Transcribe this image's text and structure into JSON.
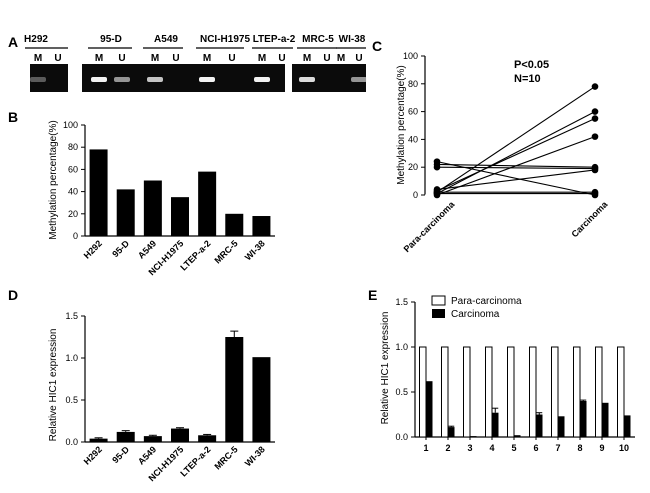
{
  "panel_labels": {
    "A": "A",
    "B": "B",
    "C": "C",
    "D": "D",
    "E": "E"
  },
  "colors": {
    "bar": "#000000",
    "gel_bg": "#0b0b0b",
    "band": "#f2f2f2",
    "open_bar": "#ffffff"
  },
  "gel": {
    "groups": [
      {
        "name": "H292",
        "lanes": [
          "M",
          "U"
        ],
        "bands": [
          0.35,
          0
        ]
      },
      {
        "name": "95-D",
        "lanes": [
          "M",
          "U"
        ],
        "bands": [
          1.0,
          0.6
        ]
      },
      {
        "name": "A549",
        "lanes": [
          "M",
          "U"
        ],
        "bands": [
          0.8,
          0
        ]
      },
      {
        "name": "NCI-H1975",
        "lanes": [
          "M",
          "U"
        ],
        "bands": [
          1.0,
          0
        ]
      },
      {
        "name": "LTEP-a-2",
        "lanes": [
          "M",
          "U"
        ],
        "bands": [
          1.0,
          0
        ]
      },
      {
        "name": "MRC-5",
        "lanes": [
          "M",
          "U"
        ],
        "bands": [
          0.9,
          0
        ]
      },
      {
        "name": "WI-38",
        "lanes": [
          "M",
          "U"
        ],
        "bands": [
          0,
          0.6
        ]
      }
    ]
  },
  "chart_data": [
    {
      "id": "B",
      "type": "bar",
      "categories": [
        "H292",
        "95-D",
        "A549",
        "NCI-H1975",
        "LTEP-a-2",
        "MRC-5",
        "WI-38"
      ],
      "values": [
        78,
        42,
        50,
        35,
        58,
        20,
        18
      ],
      "ylabel": "Methylation percentage(%)",
      "ylim": [
        0,
        100
      ],
      "yticks": [
        "0",
        "20",
        "40",
        "60",
        "80",
        "100"
      ]
    },
    {
      "id": "C",
      "type": "scatter",
      "categories": [
        "Para-carcinoma",
        "Carcinoma"
      ],
      "pairs": [
        [
          2,
          78
        ],
        [
          1,
          60
        ],
        [
          3,
          55
        ],
        [
          0,
          42
        ],
        [
          22,
          20
        ],
        [
          20,
          19
        ],
        [
          4,
          18
        ],
        [
          2,
          2
        ],
        [
          1,
          1
        ],
        [
          24,
          0
        ]
      ],
      "ylabel": "Methylation percentage(%)",
      "ylim": [
        0,
        100
      ],
      "yticks": [
        "0",
        "20",
        "40",
        "60",
        "80",
        "100"
      ],
      "annotations": [
        "P<0.05",
        "N=10"
      ]
    },
    {
      "id": "D",
      "type": "bar",
      "categories": [
        "H292",
        "95-D",
        "A549",
        "NCI-H1975",
        "LTEP-a-2",
        "MRC-5",
        "WI-38"
      ],
      "values": [
        0.04,
        0.12,
        0.07,
        0.16,
        0.08,
        1.25,
        1.01
      ],
      "errors": [
        0.01,
        0.015,
        0.01,
        0.01,
        0.01,
        0.07,
        0
      ],
      "ylabel": "Relative HIC1 expression",
      "ylim": [
        0,
        1.5
      ],
      "yticks": [
        "0.0",
        "0.5",
        "1.0",
        "1.5"
      ]
    },
    {
      "id": "E",
      "type": "bar",
      "categories": [
        "1",
        "2",
        "3",
        "4",
        "5",
        "6",
        "7",
        "8",
        "9",
        "10"
      ],
      "series": [
        {
          "name": "Para-carcinoma",
          "values": [
            1,
            1,
            1,
            1,
            1,
            1,
            1,
            1,
            1,
            1
          ]
        },
        {
          "name": "Carcinoma",
          "values": [
            0.62,
            0.11,
            0.01,
            0.27,
            0.02,
            0.25,
            0.23,
            0.4,
            0.38,
            0.24
          ],
          "errors": [
            0,
            0.01,
            0,
            0.05,
            0,
            0.02,
            0,
            0.01,
            0,
            0
          ]
        }
      ],
      "ylabel": "Relative HIC1 expression",
      "ylim": [
        0,
        1.5
      ],
      "yticks": [
        "0.0",
        "0.5",
        "1.0",
        "1.5"
      ]
    }
  ]
}
